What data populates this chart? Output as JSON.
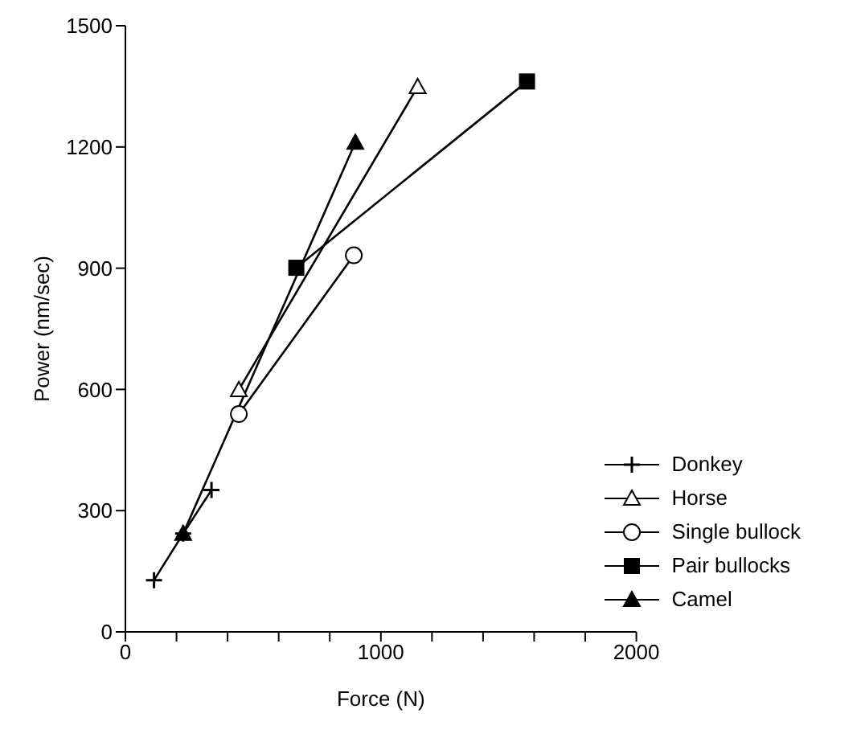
{
  "chart_data": {
    "type": "line",
    "xlabel": "Force (N)",
    "ylabel": "Power (nm/sec)",
    "xlim": [
      0,
      2000
    ],
    "xticks": [
      0,
      {
        "value": 200,
        "label": null
      },
      {
        "value": 400,
        "label": null
      },
      {
        "value": 600,
        "label": null
      },
      {
        "value": 800,
        "label": null
      },
      1000,
      {
        "value": 1200,
        "label": null
      },
      {
        "value": 1400,
        "label": null
      },
      {
        "value": 1600,
        "label": null
      },
      {
        "value": 1800,
        "label": null
      },
      2000
    ],
    "ylim": [
      0,
      1500
    ],
    "yticks": [
      0,
      300,
      600,
      900,
      1200,
      1500
    ],
    "grid": false,
    "legend": "bottom right",
    "series": [
      {
        "name": "Donkey",
        "color": "#000000",
        "marker": "cross",
        "x": [
          112,
          226,
          337
        ],
        "values": [
          128,
          243,
          351
        ]
      },
      {
        "name": "Horse",
        "color": "#000000",
        "marker": "triangle-open",
        "x": [
          444,
          1144
        ],
        "values": [
          599,
          1349
        ]
      },
      {
        "name": "Single bullock",
        "color": "#000000",
        "marker": "circle-open",
        "x": [
          444,
          894
        ],
        "values": [
          539,
          932
        ]
      },
      {
        "name": "Pair bullocks",
        "color": "#000000",
        "marker": "square",
        "x": [
          669,
          1572
        ],
        "values": [
          901,
          1362
        ]
      },
      {
        "name": "Camel",
        "color": "#000000",
        "marker": "triangle",
        "x": [
          226,
          900
        ],
        "values": [
          243,
          1211
        ]
      }
    ]
  }
}
